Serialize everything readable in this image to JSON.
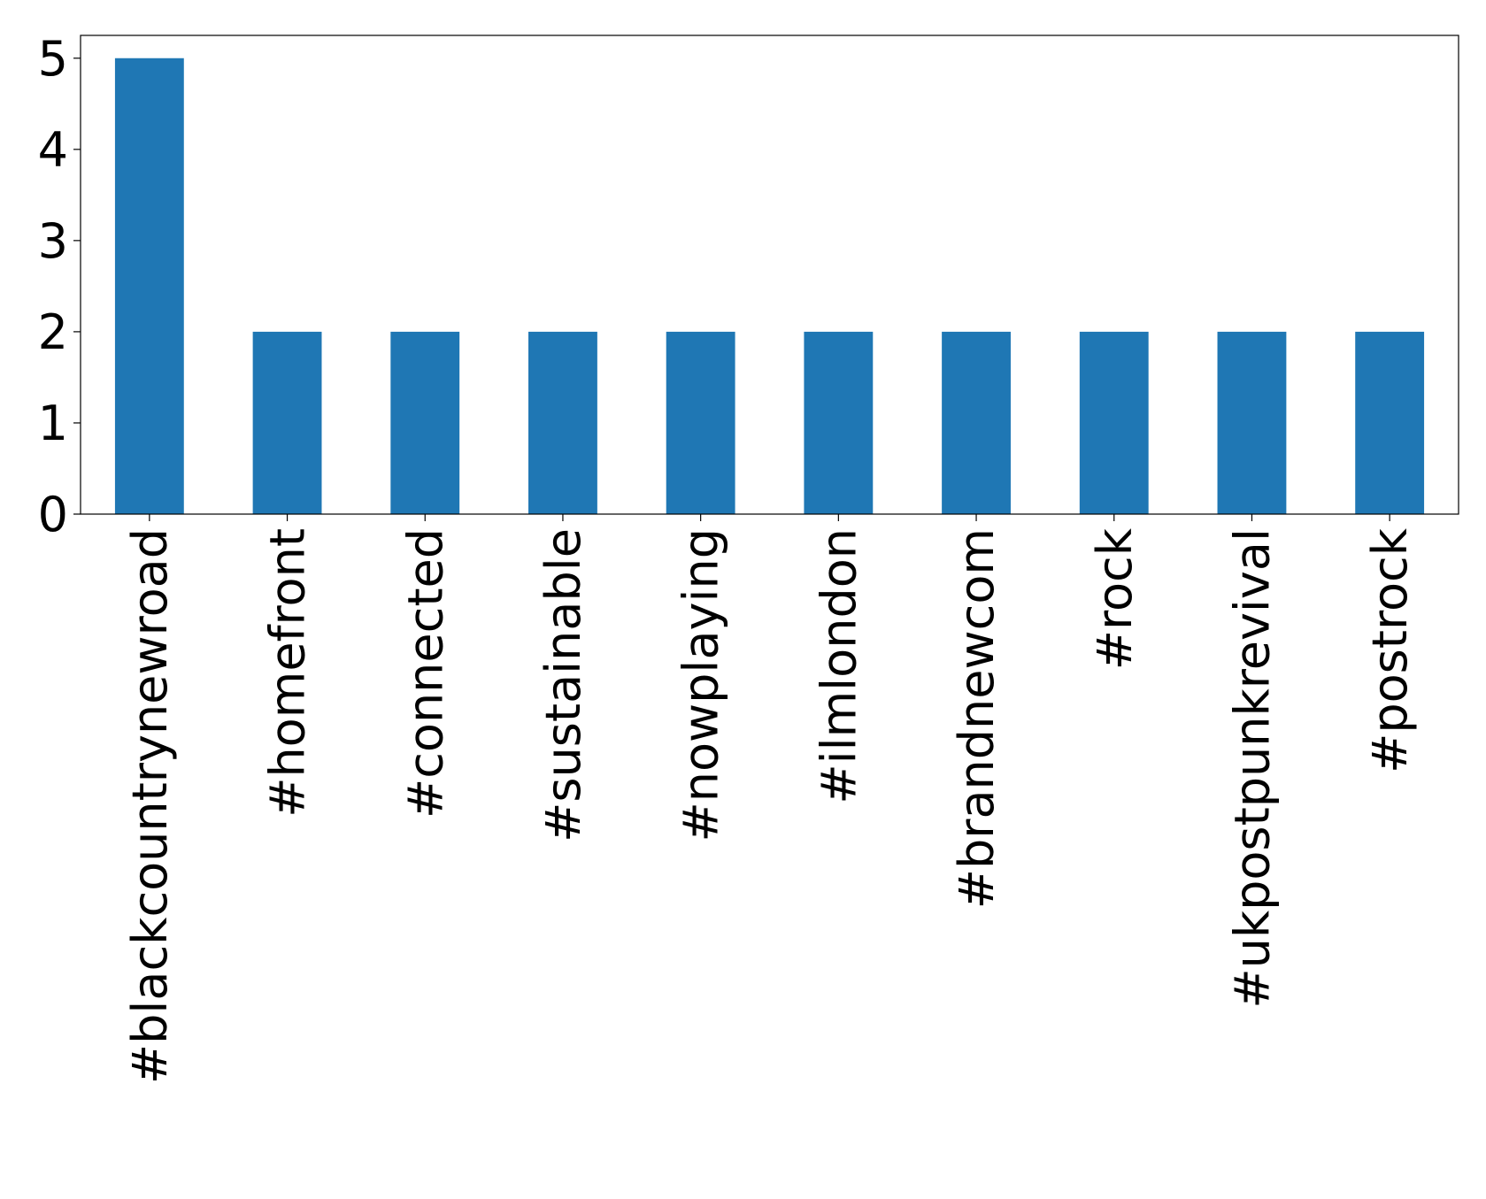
{
  "chart_data": {
    "type": "bar",
    "categories": [
      "#blackcountrynewroad",
      "#homefront",
      "#connected",
      "#sustainable",
      "#nowplaying",
      "#ilmlondon",
      "#brandnewcom",
      "#rock",
      "#ukpostpunkrevival",
      "#postrock"
    ],
    "values": [
      5,
      2,
      2,
      2,
      2,
      2,
      2,
      2,
      2,
      2
    ],
    "color": "#1f77b4",
    "ylim": [
      0,
      5.25
    ],
    "yticks": [
      0,
      1,
      2,
      3,
      4,
      5
    ],
    "grid": false
  }
}
